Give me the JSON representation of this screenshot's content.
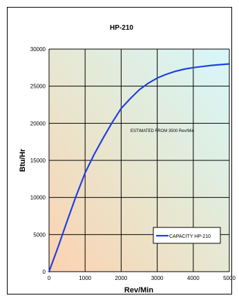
{
  "chart_data": {
    "type": "line",
    "title": "HP-210",
    "xlabel": "Rev/Min",
    "ylabel": "Btu/Hr",
    "xlim": [
      0,
      5000
    ],
    "ylim": [
      0,
      30000
    ],
    "x_ticks": [
      "0",
      "1000",
      "2000",
      "3000",
      "4000",
      "5000"
    ],
    "y_ticks": [
      "0",
      "5000",
      "10000",
      "15000",
      "20000",
      "25000",
      "30000"
    ],
    "grid": true,
    "legend_position": "bottom-right",
    "annotation": "ESTIMATED FROM 3500 Rev/Min",
    "series": [
      {
        "name": "CAPACITY HP-210",
        "color": "#1f3fe0",
        "x": [
          0,
          250,
          500,
          750,
          1000,
          1250,
          1500,
          1750,
          2000,
          2250,
          2500,
          2750,
          3000,
          3250,
          3500,
          3750,
          4000,
          4250,
          4500,
          4750,
          5000
        ],
        "y": [
          0,
          3300,
          6800,
          10200,
          13300,
          15800,
          18000,
          20100,
          22000,
          23300,
          24500,
          25400,
          26100,
          26600,
          27000,
          27300,
          27500,
          27650,
          27800,
          27900,
          28000
        ]
      }
    ]
  }
}
